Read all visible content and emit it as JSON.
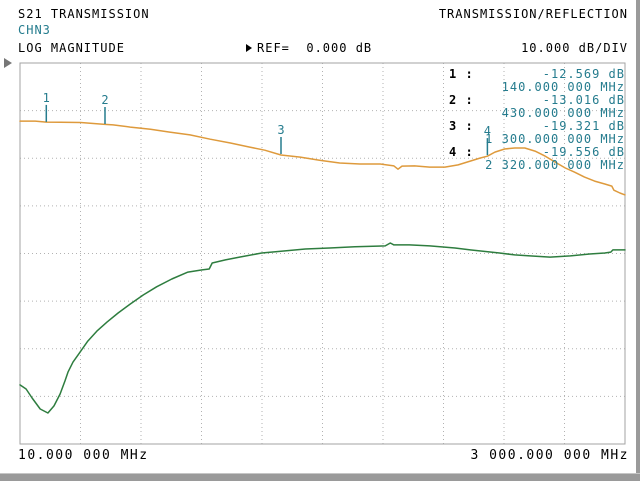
{
  "header": {
    "measurement": "S21 TRANSMISSION",
    "mode": "TRANSMISSION/REFLECTION",
    "channel": "CHN3",
    "format": "LOG MAGNITUDE",
    "ref": "REF=  0.000 dB",
    "scale": "10.000 dB/DIV"
  },
  "axis": {
    "start_label": "10.000 000 MHz",
    "stop_label": "3 000.000 000 MHz",
    "ref_db": 0,
    "db_per_div": 10,
    "x_divisions": 10,
    "y_divisions": 8
  },
  "markers": [
    {
      "num_label": "1 :",
      "num": "1",
      "mhz": 140,
      "db": -12.569,
      "db_label": "-12.569 dB",
      "freq_label": "140.000 000 MHz"
    },
    {
      "num_label": "2 :",
      "num": "2",
      "mhz": 430,
      "db": -13.016,
      "db_label": "-13.016 dB",
      "freq_label": "430.000 000 MHz"
    },
    {
      "num_label": "3 :",
      "num": "3",
      "mhz": 1300,
      "db": -19.321,
      "db_label": "-19.321 dB",
      "freq_label": "1 300.000 000 MHz"
    },
    {
      "num_label": "4 :",
      "num": "4",
      "mhz": 2320,
      "db": -19.556,
      "db_label": "-19.556 dB",
      "freq_label": "2 320.000 000 MHz"
    }
  ],
  "colors": {
    "trace1": "#de9a3c",
    "trace2": "#2e7d3f",
    "teal_text": "#257c8e",
    "grid": "#b2b2b2",
    "grid_border": "#a3a3a3",
    "ref_arrow": "#777777",
    "chrome": "#9a9a9a"
  },
  "chart_data": {
    "type": "line",
    "xlim": [
      10,
      3000
    ],
    "ylim": [
      -80,
      0
    ],
    "x_unit": "MHz",
    "y_unit": "dB",
    "grid": "dotted",
    "series": [
      {
        "name": "trace1-s21-logmag",
        "color": "#de9a3c",
        "points": [
          [
            10,
            -12.2
          ],
          [
            85,
            -12.2
          ],
          [
            140,
            -12.4
          ],
          [
            210,
            -12.45
          ],
          [
            310,
            -12.5
          ],
          [
            405,
            -12.8
          ],
          [
            430,
            -12.9
          ],
          [
            470,
            -13.0
          ],
          [
            555,
            -13.45
          ],
          [
            655,
            -13.9
          ],
          [
            750,
            -14.5
          ],
          [
            850,
            -15.1
          ],
          [
            950,
            -16.0
          ],
          [
            1050,
            -16.8
          ],
          [
            1145,
            -17.65
          ],
          [
            1220,
            -18.3
          ],
          [
            1300,
            -19.32
          ],
          [
            1395,
            -19.75
          ],
          [
            1490,
            -20.4
          ],
          [
            1590,
            -21.0
          ],
          [
            1690,
            -21.2
          ],
          [
            1790,
            -21.2
          ],
          [
            1858,
            -21.6
          ],
          [
            1878,
            -22.3
          ],
          [
            1898,
            -21.65
          ],
          [
            1960,
            -21.6
          ],
          [
            2035,
            -21.85
          ],
          [
            2110,
            -21.85
          ],
          [
            2175,
            -21.4
          ],
          [
            2235,
            -20.6
          ],
          [
            2285,
            -19.95
          ],
          [
            2320,
            -19.56
          ],
          [
            2357,
            -18.7
          ],
          [
            2405,
            -18.05
          ],
          [
            2455,
            -17.85
          ],
          [
            2505,
            -17.85
          ],
          [
            2555,
            -18.5
          ],
          [
            2605,
            -19.55
          ],
          [
            2655,
            -20.8
          ],
          [
            2705,
            -22.05
          ],
          [
            2750,
            -22.9
          ],
          [
            2800,
            -23.95
          ],
          [
            2850,
            -24.8
          ],
          [
            2900,
            -25.4
          ],
          [
            2935,
            -25.85
          ],
          [
            2945,
            -26.7
          ],
          [
            2975,
            -27.3
          ],
          [
            3000,
            -27.7
          ]
        ]
      },
      {
        "name": "trace2",
        "color": "#2e7d3f",
        "points": [
          [
            10,
            -67.6
          ],
          [
            40,
            -68.45
          ],
          [
            70,
            -70.35
          ],
          [
            110,
            -72.65
          ],
          [
            148,
            -73.5
          ],
          [
            178,
            -72.0
          ],
          [
            208,
            -69.5
          ],
          [
            232,
            -66.8
          ],
          [
            247,
            -64.9
          ],
          [
            272,
            -62.8
          ],
          [
            307,
            -60.7
          ],
          [
            345,
            -58.4
          ],
          [
            390,
            -56.3
          ],
          [
            440,
            -54.4
          ],
          [
            495,
            -52.5
          ],
          [
            555,
            -50.6
          ],
          [
            620,
            -48.7
          ],
          [
            685,
            -47.0
          ],
          [
            760,
            -45.35
          ],
          [
            840,
            -43.9
          ],
          [
            910,
            -43.45
          ],
          [
            945,
            -43.25
          ],
          [
            960,
            -42.0
          ],
          [
            1025,
            -41.35
          ],
          [
            1095,
            -40.75
          ],
          [
            1205,
            -39.9
          ],
          [
            1320,
            -39.45
          ],
          [
            1420,
            -39.05
          ],
          [
            1540,
            -38.85
          ],
          [
            1665,
            -38.6
          ],
          [
            1815,
            -38.4
          ],
          [
            1840,
            -37.8
          ],
          [
            1858,
            -38.2
          ],
          [
            1935,
            -38.2
          ],
          [
            2035,
            -38.4
          ],
          [
            2160,
            -38.85
          ],
          [
            2235,
            -39.25
          ],
          [
            2380,
            -39.9
          ],
          [
            2455,
            -40.3
          ],
          [
            2530,
            -40.5
          ],
          [
            2630,
            -40.75
          ],
          [
            2730,
            -40.5
          ],
          [
            2825,
            -40.1
          ],
          [
            2900,
            -39.9
          ],
          [
            2930,
            -39.7
          ],
          [
            2940,
            -39.25
          ],
          [
            3000,
            -39.25
          ]
        ]
      }
    ]
  }
}
